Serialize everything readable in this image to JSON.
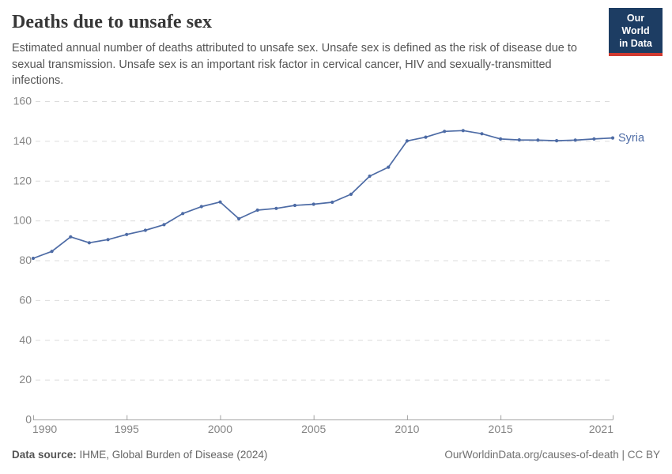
{
  "header": {
    "title": "Deaths due to unsafe sex",
    "subtitle": "Estimated annual number of deaths attributed to unsafe sex. Unsafe sex is defined as the risk of disease due to sexual transmission. Unsafe sex is an important risk factor in cervical cancer, HIV and sexually-transmitted infections.",
    "logo": {
      "line1": "Our World",
      "line2": "in Data"
    }
  },
  "chart_data": {
    "type": "line",
    "title": "Deaths due to unsafe sex",
    "xlabel": "",
    "ylabel": "",
    "x": [
      1990,
      1991,
      1992,
      1993,
      1994,
      1995,
      1996,
      1997,
      1998,
      1999,
      2000,
      2001,
      2002,
      2003,
      2004,
      2005,
      2006,
      2007,
      2008,
      2009,
      2010,
      2011,
      2012,
      2013,
      2014,
      2015,
      2016,
      2017,
      2018,
      2019,
      2020,
      2021
    ],
    "series": [
      {
        "name": "Syria",
        "color": "#4d6ba5",
        "values": [
          81,
          84.5,
          91.8,
          88.8,
          90.4,
          93,
          95.1,
          97.9,
          103.5,
          107,
          109.3,
          100.9,
          105.2,
          106.1,
          107.6,
          108.2,
          109.2,
          113.2,
          122.3,
          126.8,
          140,
          141.9,
          144.8,
          145.2,
          143.6,
          141,
          140.5,
          140.4,
          140.1,
          140.4,
          141,
          141.5
        ]
      }
    ],
    "xlim": [
      1990,
      2021
    ],
    "ylim": [
      0,
      160
    ],
    "yticks": [
      0,
      20,
      40,
      60,
      80,
      100,
      120,
      140,
      160
    ],
    "xticks": [
      1990,
      1995,
      2000,
      2005,
      2010,
      2015,
      2021
    ],
    "grid": true,
    "legend_position": "end-of-line"
  },
  "footer": {
    "source_label": "Data source:",
    "source_value": " IHME, Global Burden of Disease (2024)",
    "credit": "OurWorldinData.org/causes-of-death | CC BY"
  },
  "colors": {
    "line": "#4d6ba5",
    "grid": "#dcdcdc",
    "axis": "#a3a3a3",
    "tick_label": "#858585",
    "logo_bg": "#1d3d63",
    "logo_red": "#d13b31"
  }
}
